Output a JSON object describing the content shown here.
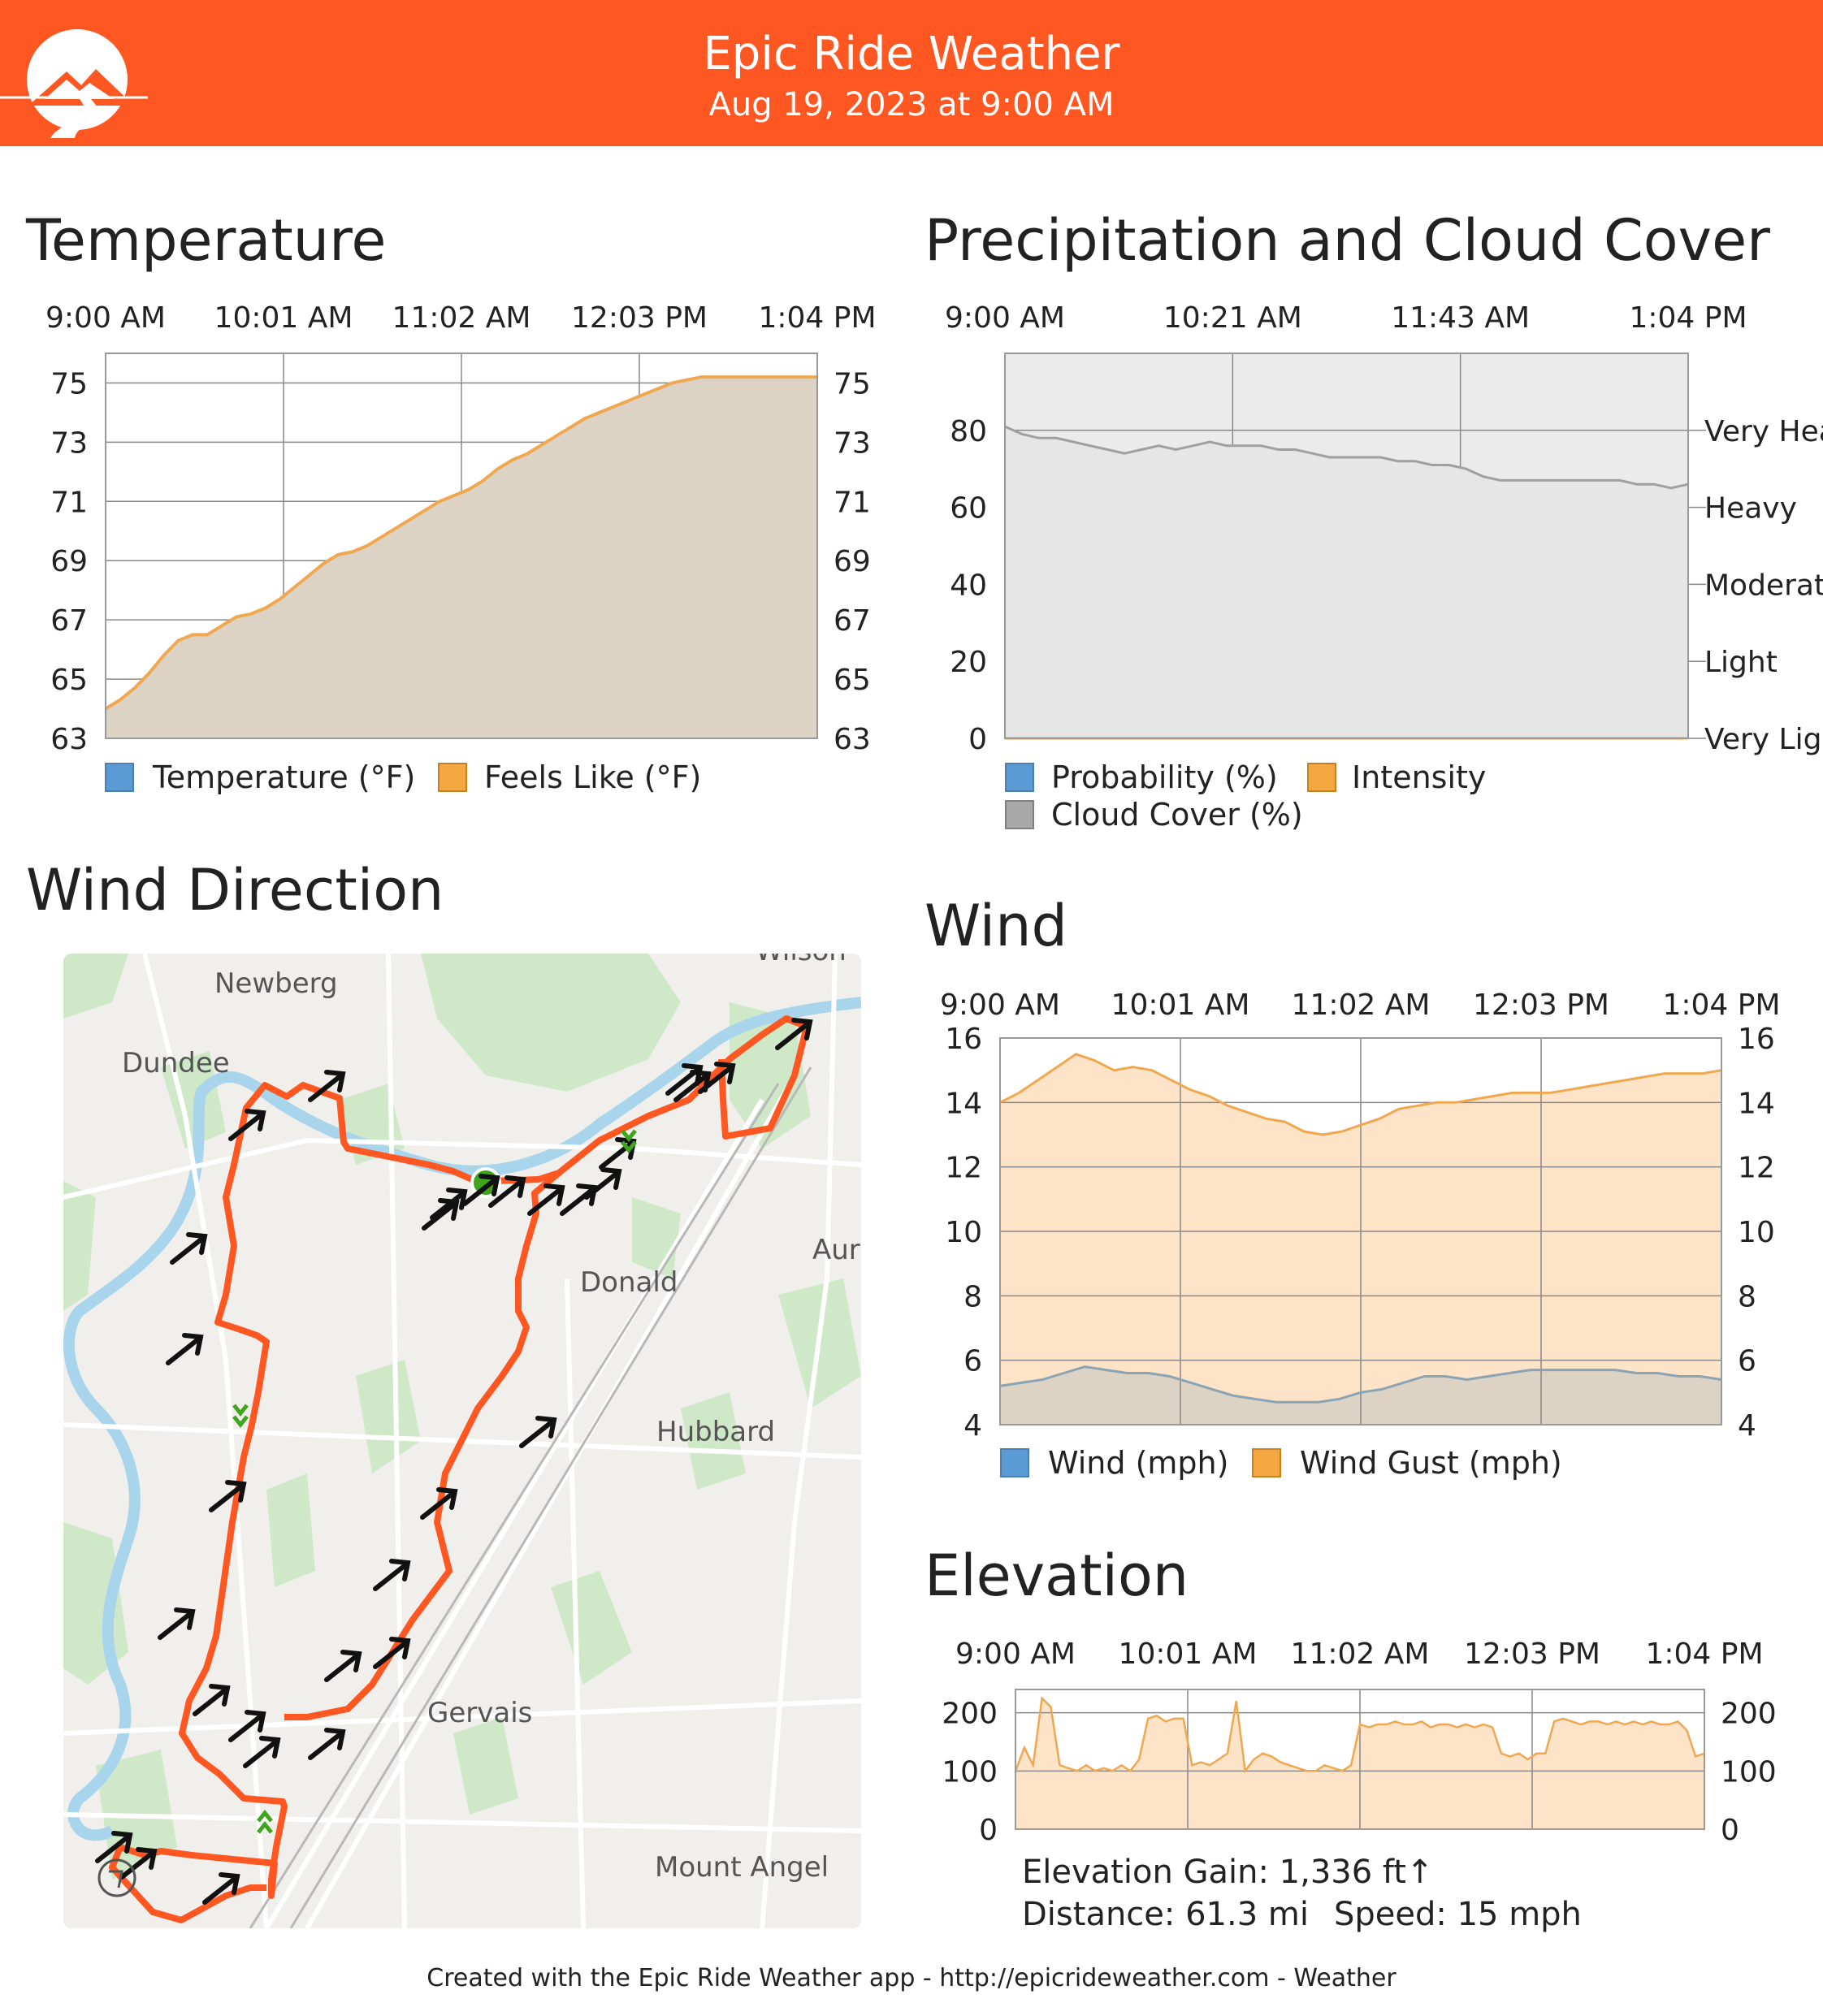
{
  "header": {
    "title": "Epic Ride Weather",
    "subtitle": "Aug 19, 2023 at 9:00 AM",
    "color": "#ff5722"
  },
  "temperature": {
    "title": "Temperature",
    "chart_data": {
      "type": "area",
      "x_ticks": [
        "9:00 AM",
        "10:01 AM",
        "11:02 AM",
        "12:03 PM",
        "1:04 PM"
      ],
      "y_ticks": [
        "75",
        "73",
        "71",
        "69",
        "67",
        "65",
        "63"
      ],
      "ylim": [
        63,
        76
      ],
      "series": [
        {
          "name": "Temperature (°F)",
          "color": "#5a9bd5"
        },
        {
          "name": "Feels Like (°F)",
          "color": "#f5a742",
          "x_min": [
            0,
            5,
            10,
            15,
            20,
            25,
            30,
            35,
            40,
            45,
            50,
            55,
            60,
            65,
            70,
            75,
            80,
            85,
            90,
            95,
            100,
            105,
            110,
            115,
            120,
            125,
            130,
            135,
            140,
            145,
            150,
            155,
            160,
            165,
            170,
            175,
            180,
            185,
            190,
            195,
            200,
            205,
            210,
            215,
            220,
            225,
            230,
            235,
            240,
            245
          ],
          "values": [
            64.0,
            64.3,
            64.7,
            65.2,
            65.8,
            66.3,
            66.5,
            66.5,
            66.8,
            67.1,
            67.2,
            67.4,
            67.7,
            68.1,
            68.5,
            68.9,
            69.2,
            69.3,
            69.5,
            69.8,
            70.1,
            70.4,
            70.7,
            71.0,
            71.2,
            71.4,
            71.7,
            72.1,
            72.4,
            72.6,
            72.9,
            73.2,
            73.5,
            73.8,
            74.0,
            74.2,
            74.4,
            74.6,
            74.8,
            75.0,
            75.1,
            75.2,
            75.2,
            75.2,
            75.2,
            75.2,
            75.2,
            75.2,
            75.2,
            75.2
          ]
        }
      ]
    }
  },
  "precip": {
    "title": "Precipitation and Cloud Cover",
    "chart_data": {
      "type": "area",
      "x_ticks": [
        "9:00 AM",
        "10:21 AM",
        "11:43 AM",
        "1:04 PM"
      ],
      "y_ticks": [
        "80",
        "60",
        "40",
        "20",
        "0"
      ],
      "right_ticks": [
        "Very Heavy",
        "Heavy",
        "Moderate",
        "Light",
        "Very Light"
      ],
      "ylim": [
        0,
        100
      ],
      "series": [
        {
          "name": "Probability (%)",
          "color": "#5a9bd5"
        },
        {
          "name": "Intensity",
          "color": "#f5a742"
        },
        {
          "name": "Cloud Cover (%)",
          "color": "#a8a8a8",
          "values": [
            81,
            79,
            78,
            78,
            77,
            76,
            75,
            74,
            75,
            76,
            75,
            76,
            77,
            76,
            76,
            76,
            75,
            75,
            74,
            73,
            73,
            73,
            73,
            72,
            72,
            71,
            71,
            70,
            68,
            67,
            67,
            67,
            67,
            67,
            67,
            67,
            67,
            66,
            66,
            65,
            66
          ]
        }
      ]
    }
  },
  "wind_direction": {
    "title": "Wind Direction",
    "towns": [
      "Newberg",
      "Dundee",
      "Donald",
      "Hubbard",
      "Gervais",
      "Mount Angel",
      "Aur",
      "Wilson"
    ]
  },
  "wind": {
    "title": "Wind",
    "chart_data": {
      "type": "area",
      "x_ticks": [
        "9:00 AM",
        "10:01 AM",
        "11:02 AM",
        "12:03 PM",
        "1:04 PM"
      ],
      "y_ticks": [
        "16",
        "14",
        "12",
        "10",
        "8",
        "6",
        "4"
      ],
      "ylim": [
        4,
        16
      ],
      "series": [
        {
          "name": "Wind (mph)",
          "color": "#5a9bd5",
          "values": [
            5.2,
            5.3,
            5.4,
            5.6,
            5.8,
            5.7,
            5.6,
            5.6,
            5.5,
            5.3,
            5.1,
            4.9,
            4.8,
            4.7,
            4.7,
            4.7,
            4.8,
            5.0,
            5.1,
            5.3,
            5.5,
            5.5,
            5.4,
            5.5,
            5.6,
            5.7,
            5.7,
            5.7,
            5.7,
            5.7,
            5.6,
            5.6,
            5.5,
            5.5,
            5.4
          ]
        },
        {
          "name": "Wind Gust (mph)",
          "color": "#f5a742",
          "values": [
            14.0,
            14.3,
            14.7,
            15.1,
            15.5,
            15.3,
            15.0,
            15.1,
            15.0,
            14.7,
            14.4,
            14.2,
            13.9,
            13.7,
            13.5,
            13.4,
            13.1,
            13.0,
            13.1,
            13.3,
            13.5,
            13.8,
            13.9,
            14.0,
            14.0,
            14.1,
            14.2,
            14.3,
            14.3,
            14.3,
            14.4,
            14.5,
            14.6,
            14.7,
            14.8,
            14.9,
            14.9,
            14.9,
            15.0
          ]
        }
      ]
    }
  },
  "elevation": {
    "title": "Elevation",
    "chart_data": {
      "type": "area",
      "x_ticks": [
        "9:00 AM",
        "10:01 AM",
        "11:02 AM",
        "12:03 PM",
        "1:04 PM"
      ],
      "y_ticks": [
        "200",
        "100",
        "0"
      ],
      "ylim": [
        0,
        240
      ],
      "series": [
        {
          "name": "Elevation",
          "color": "#f5a742",
          "values": [
            100,
            140,
            110,
            225,
            210,
            110,
            105,
            100,
            110,
            100,
            105,
            100,
            110,
            100,
            120,
            190,
            195,
            185,
            190,
            190,
            110,
            115,
            110,
            120,
            130,
            220,
            100,
            120,
            130,
            125,
            115,
            110,
            105,
            100,
            100,
            110,
            105,
            100,
            110,
            180,
            175,
            180,
            180,
            185,
            180,
            180,
            185,
            175,
            180,
            180,
            175,
            180,
            175,
            180,
            175,
            130,
            125,
            130,
            120,
            130,
            130,
            185,
            190,
            185,
            180,
            185,
            185,
            180,
            185,
            180,
            185,
            180,
            185,
            180,
            180,
            185,
            170,
            125,
            130
          ]
        }
      ]
    },
    "gain_label": "Elevation Gain: 1,336 ft↑",
    "distance_label": "Distance: 61.3 mi",
    "speed_label": "Speed: 15 mph"
  },
  "footer": {
    "text": "Created with the Epic Ride Weather app - http://epicrideweather.com - ",
    "apple_weather": "Weather"
  }
}
